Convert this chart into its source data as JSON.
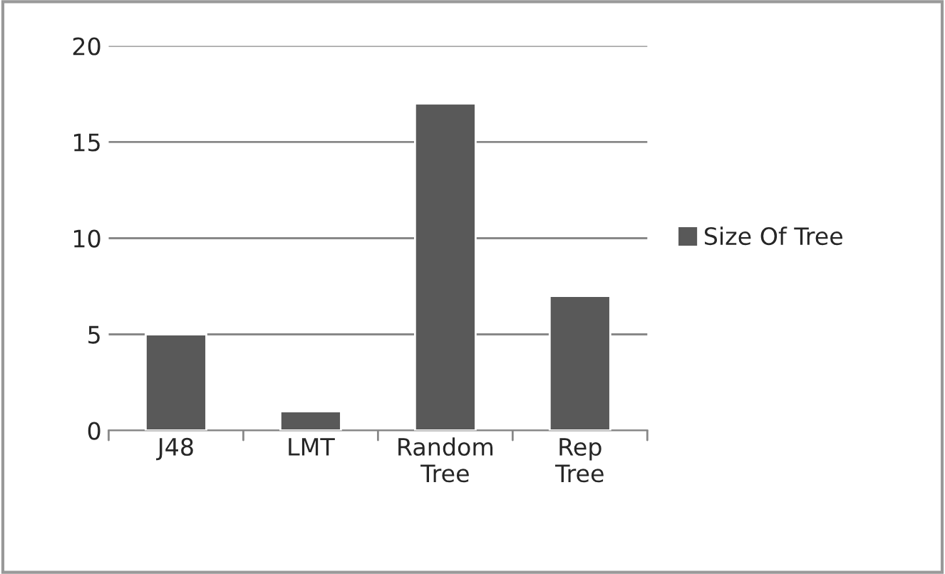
{
  "chart_data": {
    "type": "bar",
    "categories": [
      "J48",
      "LMT",
      "Random Tree",
      "Rep Tree"
    ],
    "series": [
      {
        "name": "Size Of Tree",
        "color": "#595959",
        "values": [
          5,
          1,
          17,
          7
        ]
      }
    ],
    "ylim": [
      0,
      20
    ],
    "yticks": [
      0,
      5,
      10,
      15,
      20
    ],
    "grid": "y",
    "legend": "right"
  }
}
